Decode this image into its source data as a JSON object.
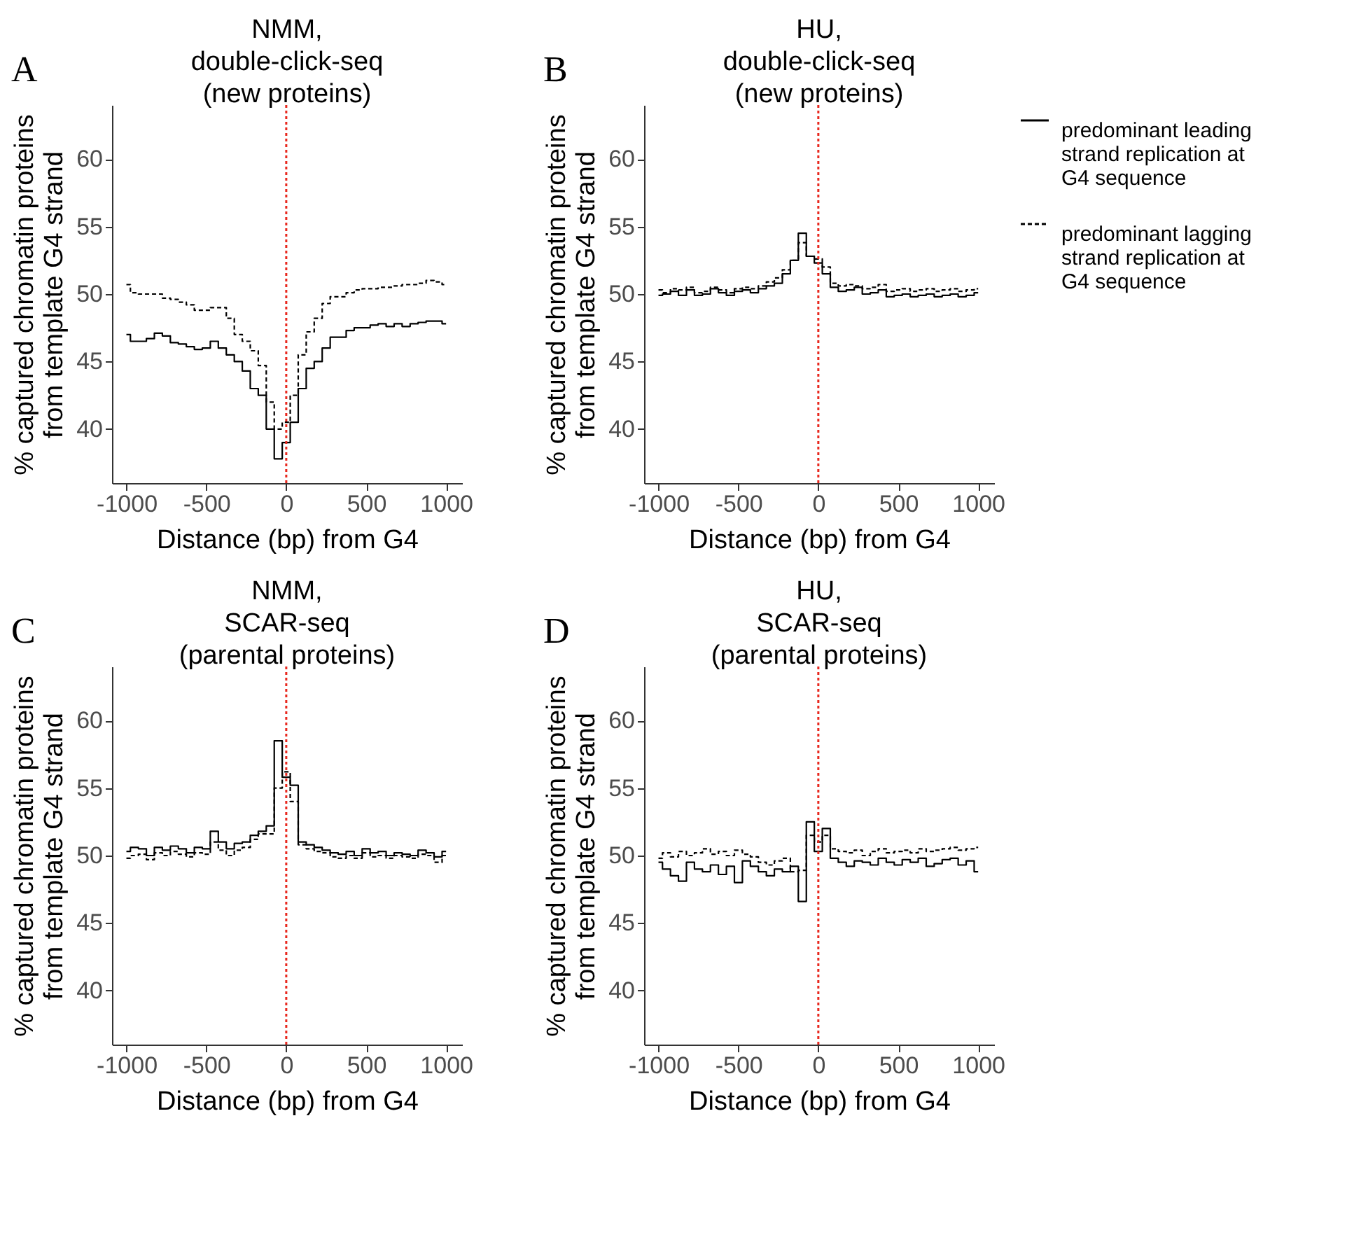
{
  "chart_data": [
    {
      "type": "step",
      "title": "NMM,\ndouble-click-seq\n(new proteins)",
      "xlabel": "Distance (bp) from G4",
      "ylabel": "% captured chromatin proteins\nfrom template G4 strand",
      "annotations": [
        "A"
      ],
      "xlim": [
        -1090,
        1100
      ],
      "ylim": [
        36,
        64
      ],
      "xticks": [
        -1000,
        -500,
        0,
        500,
        1000
      ],
      "yticks": [
        40,
        45,
        50,
        55,
        60
      ],
      "grid": false,
      "legend": false,
      "ref_lines": [
        {
          "axis": "x",
          "value": 0,
          "color": "#e8281e",
          "line_style": "dotted"
        }
      ],
      "x": [
        -1000,
        -950,
        -900,
        -850,
        -800,
        -750,
        -700,
        -650,
        -600,
        -550,
        -500,
        -450,
        -400,
        -350,
        -300,
        -250,
        -200,
        -150,
        -100,
        -50,
        0,
        50,
        100,
        150,
        200,
        250,
        300,
        350,
        400,
        450,
        500,
        550,
        600,
        650,
        700,
        750,
        800,
        850,
        900,
        950,
        1000
      ],
      "series": [
        {
          "color": "#000000",
          "line_style": "solid",
          "values": [
            47,
            46.5,
            46.5,
            46.7,
            47.1,
            46.9,
            46.4,
            46.3,
            46.1,
            45.9,
            46,
            46.5,
            46,
            45.5,
            45,
            44.3,
            43,
            42.5,
            40,
            37.8,
            39,
            40.5,
            43,
            44.5,
            45,
            46,
            46.8,
            46.8,
            47.3,
            47.5,
            47.5,
            47.7,
            47.8,
            47.6,
            47.8,
            47.6,
            47.8,
            47.9,
            48,
            48,
            47.8
          ]
        },
        {
          "color": "#000000",
          "line_style": "dashed",
          "values": [
            50.7,
            50.1,
            50,
            50,
            50,
            49.7,
            49.6,
            49.4,
            49.2,
            48.8,
            48.8,
            49,
            49,
            48.2,
            47,
            46.5,
            45.8,
            44.7,
            42,
            40,
            40.5,
            42.5,
            45.5,
            47.2,
            48.2,
            49.3,
            49.8,
            49.8,
            50.1,
            50.3,
            50.4,
            50.4,
            50.5,
            50.5,
            50.6,
            50.7,
            50.7,
            50.8,
            51,
            50.9,
            50.7
          ]
        }
      ]
    },
    {
      "type": "step",
      "title": "HU,\ndouble-click-seq\n(new proteins)",
      "xlabel": "Distance (bp) from G4",
      "ylabel": "% captured chromatin proteins\nfrom template G4 strand",
      "annotations": [
        "B"
      ],
      "xlim": [
        -1090,
        1100
      ],
      "ylim": [
        36,
        64
      ],
      "xticks": [
        -1000,
        -500,
        0,
        500,
        1000
      ],
      "yticks": [
        40,
        45,
        50,
        55,
        60
      ],
      "grid": false,
      "legend": "right",
      "ref_lines": [
        {
          "axis": "x",
          "value": 0,
          "color": "#e8281e",
          "line_style": "dotted"
        }
      ],
      "x": [
        -1000,
        -950,
        -900,
        -850,
        -800,
        -750,
        -700,
        -650,
        -600,
        -550,
        -500,
        -450,
        -400,
        -350,
        -300,
        -250,
        -200,
        -150,
        -100,
        -50,
        0,
        50,
        100,
        150,
        200,
        250,
        300,
        350,
        400,
        450,
        500,
        550,
        600,
        650,
        700,
        750,
        800,
        850,
        900,
        950,
        1000
      ],
      "series": [
        {
          "name": "predominant leading strand replication at G4 sequence",
          "color": "#000000",
          "line_style": "solid",
          "values": [
            49.9,
            50,
            50.2,
            49.9,
            50.3,
            49.9,
            50,
            50.4,
            50.1,
            49.9,
            50.2,
            50.3,
            50.1,
            50.4,
            50.6,
            50.8,
            51.5,
            52.5,
            54.5,
            52.8,
            52.3,
            51.5,
            50.5,
            50.2,
            50.3,
            50.5,
            50,
            50.1,
            50.3,
            49.8,
            49.9,
            50,
            49.8,
            49.9,
            50,
            49.8,
            49.9,
            50,
            49.8,
            49.9,
            50.1
          ]
        },
        {
          "name": "predominant lagging strand replication at G4 sequence",
          "color": "#000000",
          "line_style": "dashed",
          "values": [
            50.3,
            50.1,
            50.4,
            50.3,
            50.5,
            50.1,
            50.2,
            50.5,
            50.3,
            50.1,
            50.4,
            50.5,
            50.4,
            50.6,
            50.9,
            51.2,
            51.8,
            52.5,
            53.8,
            52.8,
            52.6,
            52,
            50.8,
            50.6,
            50.7,
            50.6,
            50.4,
            50.5,
            50.7,
            50.2,
            50.3,
            50.4,
            50.2,
            50.3,
            50.4,
            50.2,
            50.3,
            50.4,
            50.2,
            50.3,
            50.4
          ]
        }
      ]
    },
    {
      "type": "step",
      "title": "NMM,\nSCAR-seq\n(parental proteins)",
      "xlabel": "Distance (bp) from G4",
      "ylabel": "% captured chromatin proteins\nfrom template G4 strand",
      "annotations": [
        "C"
      ],
      "xlim": [
        -1090,
        1100
      ],
      "ylim": [
        36,
        64
      ],
      "xticks": [
        -1000,
        -500,
        0,
        500,
        1000
      ],
      "yticks": [
        40,
        45,
        50,
        55,
        60
      ],
      "grid": false,
      "legend": false,
      "ref_lines": [
        {
          "axis": "x",
          "value": 0,
          "color": "#e8281e",
          "line_style": "dotted"
        }
      ],
      "x": [
        -1000,
        -950,
        -900,
        -850,
        -800,
        -750,
        -700,
        -650,
        -600,
        -550,
        -500,
        -450,
        -400,
        -350,
        -300,
        -250,
        -200,
        -150,
        -100,
        -50,
        0,
        50,
        100,
        150,
        200,
        250,
        300,
        350,
        400,
        450,
        500,
        550,
        600,
        650,
        700,
        750,
        800,
        850,
        900,
        950,
        1000
      ],
      "series": [
        {
          "color": "#000000",
          "line_style": "solid",
          "values": [
            50.3,
            50.6,
            50.5,
            50,
            50.6,
            50.4,
            50.7,
            50.5,
            50.2,
            50.6,
            50.5,
            51.8,
            51,
            50.5,
            50.9,
            51,
            51.5,
            51.8,
            52.2,
            58.5,
            55.8,
            55.2,
            51,
            50.8,
            50.6,
            50.4,
            50.2,
            50.1,
            50.3,
            50,
            50.5,
            50.2,
            50.3,
            50,
            50.2,
            50.1,
            50,
            50.4,
            50.2,
            49.9,
            50.3
          ]
        },
        {
          "color": "#000000",
          "line_style": "dashed",
          "values": [
            49.8,
            50,
            50.1,
            49.7,
            50.2,
            50,
            50.3,
            50.1,
            49.9,
            50.2,
            50.1,
            51,
            50.4,
            50,
            50.4,
            50.6,
            51.2,
            51.6,
            51.6,
            55,
            56.2,
            54,
            50.8,
            50.5,
            50.3,
            50.2,
            49.9,
            49.8,
            50,
            49.8,
            50.2,
            49.9,
            50,
            49.8,
            50,
            49.9,
            49.8,
            50.1,
            50,
            49.5,
            50
          ]
        }
      ]
    },
    {
      "type": "step",
      "title": "HU,\nSCAR-seq\n(parental proteins)",
      "xlabel": "Distance (bp) from G4",
      "ylabel": "% captured chromatin proteins\nfrom template G4 strand",
      "annotations": [
        "D"
      ],
      "xlim": [
        -1090,
        1100
      ],
      "ylim": [
        36,
        64
      ],
      "xticks": [
        -1000,
        -500,
        0,
        500,
        1000
      ],
      "yticks": [
        40,
        45,
        50,
        55,
        60
      ],
      "grid": false,
      "legend": false,
      "ref_lines": [
        {
          "axis": "x",
          "value": 0,
          "color": "#e8281e",
          "line_style": "dotted"
        }
      ],
      "x": [
        -1000,
        -950,
        -900,
        -850,
        -800,
        -750,
        -700,
        -650,
        -600,
        -550,
        -500,
        -450,
        -400,
        -350,
        -300,
        -250,
        -200,
        -150,
        -100,
        -50,
        0,
        50,
        100,
        150,
        200,
        250,
        300,
        350,
        400,
        450,
        500,
        550,
        600,
        650,
        700,
        750,
        800,
        850,
        900,
        950,
        1000
      ],
      "series": [
        {
          "color": "#000000",
          "line_style": "solid",
          "values": [
            49.5,
            49,
            48.5,
            48.1,
            49.5,
            49,
            48.8,
            49.3,
            48.6,
            49.2,
            48,
            49.6,
            49.2,
            48.8,
            48.5,
            49,
            48.8,
            49.2,
            46.6,
            52.5,
            50.3,
            52,
            49.8,
            49.5,
            49.2,
            49.6,
            49.5,
            49.3,
            49.8,
            49.5,
            49.3,
            49.7,
            49.5,
            49.8,
            49.2,
            49.4,
            49.7,
            49.8,
            49.3,
            49.6,
            48.8
          ]
        },
        {
          "color": "#000000",
          "line_style": "dashed",
          "values": [
            49.8,
            50.2,
            49.9,
            50.3,
            50,
            50.2,
            50.5,
            50.1,
            50.3,
            50,
            50.4,
            50.1,
            49.9,
            49.5,
            49.3,
            49.6,
            49.8,
            48.8,
            48.9,
            51.5,
            51,
            51.5,
            50.5,
            50.3,
            50.2,
            50.4,
            50,
            50.3,
            50.5,
            50.2,
            50.3,
            50.4,
            50.2,
            50.5,
            50.3,
            50.4,
            50.5,
            50.6,
            50.4,
            50.5,
            50.6
          ]
        }
      ]
    }
  ]
}
